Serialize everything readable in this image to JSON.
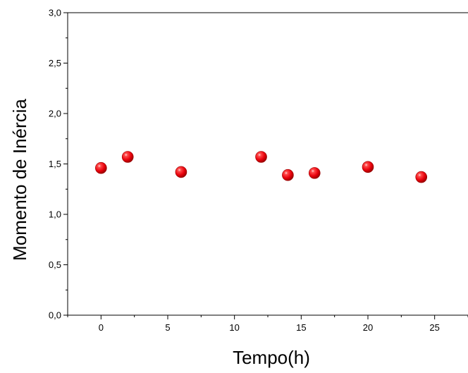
{
  "chart_data": {
    "type": "scatter",
    "title": "",
    "xlabel": "Tempo(h)",
    "ylabel": "Momento de Inércia",
    "xlim": [
      -2.5,
      27.5
    ],
    "ylim": [
      0.0,
      3.0
    ],
    "x_ticks": [
      0,
      5,
      10,
      15,
      20,
      25
    ],
    "x_tick_labels": [
      "0",
      "5",
      "10",
      "15",
      "20",
      "25"
    ],
    "y_ticks": [
      0.0,
      0.5,
      1.0,
      1.5,
      2.0,
      2.5,
      3.0
    ],
    "y_tick_labels": [
      "0,0",
      "0,5",
      "1,0",
      "1,5",
      "2,0",
      "2,5",
      "3,0"
    ],
    "grid": false,
    "legend": "none",
    "marker_color": "#e8000b",
    "series": [
      {
        "x": [
          0,
          2,
          6,
          12,
          14,
          16,
          20,
          24
        ],
        "y": [
          1.46,
          1.57,
          1.42,
          1.57,
          1.39,
          1.41,
          1.47,
          1.37
        ]
      }
    ]
  }
}
